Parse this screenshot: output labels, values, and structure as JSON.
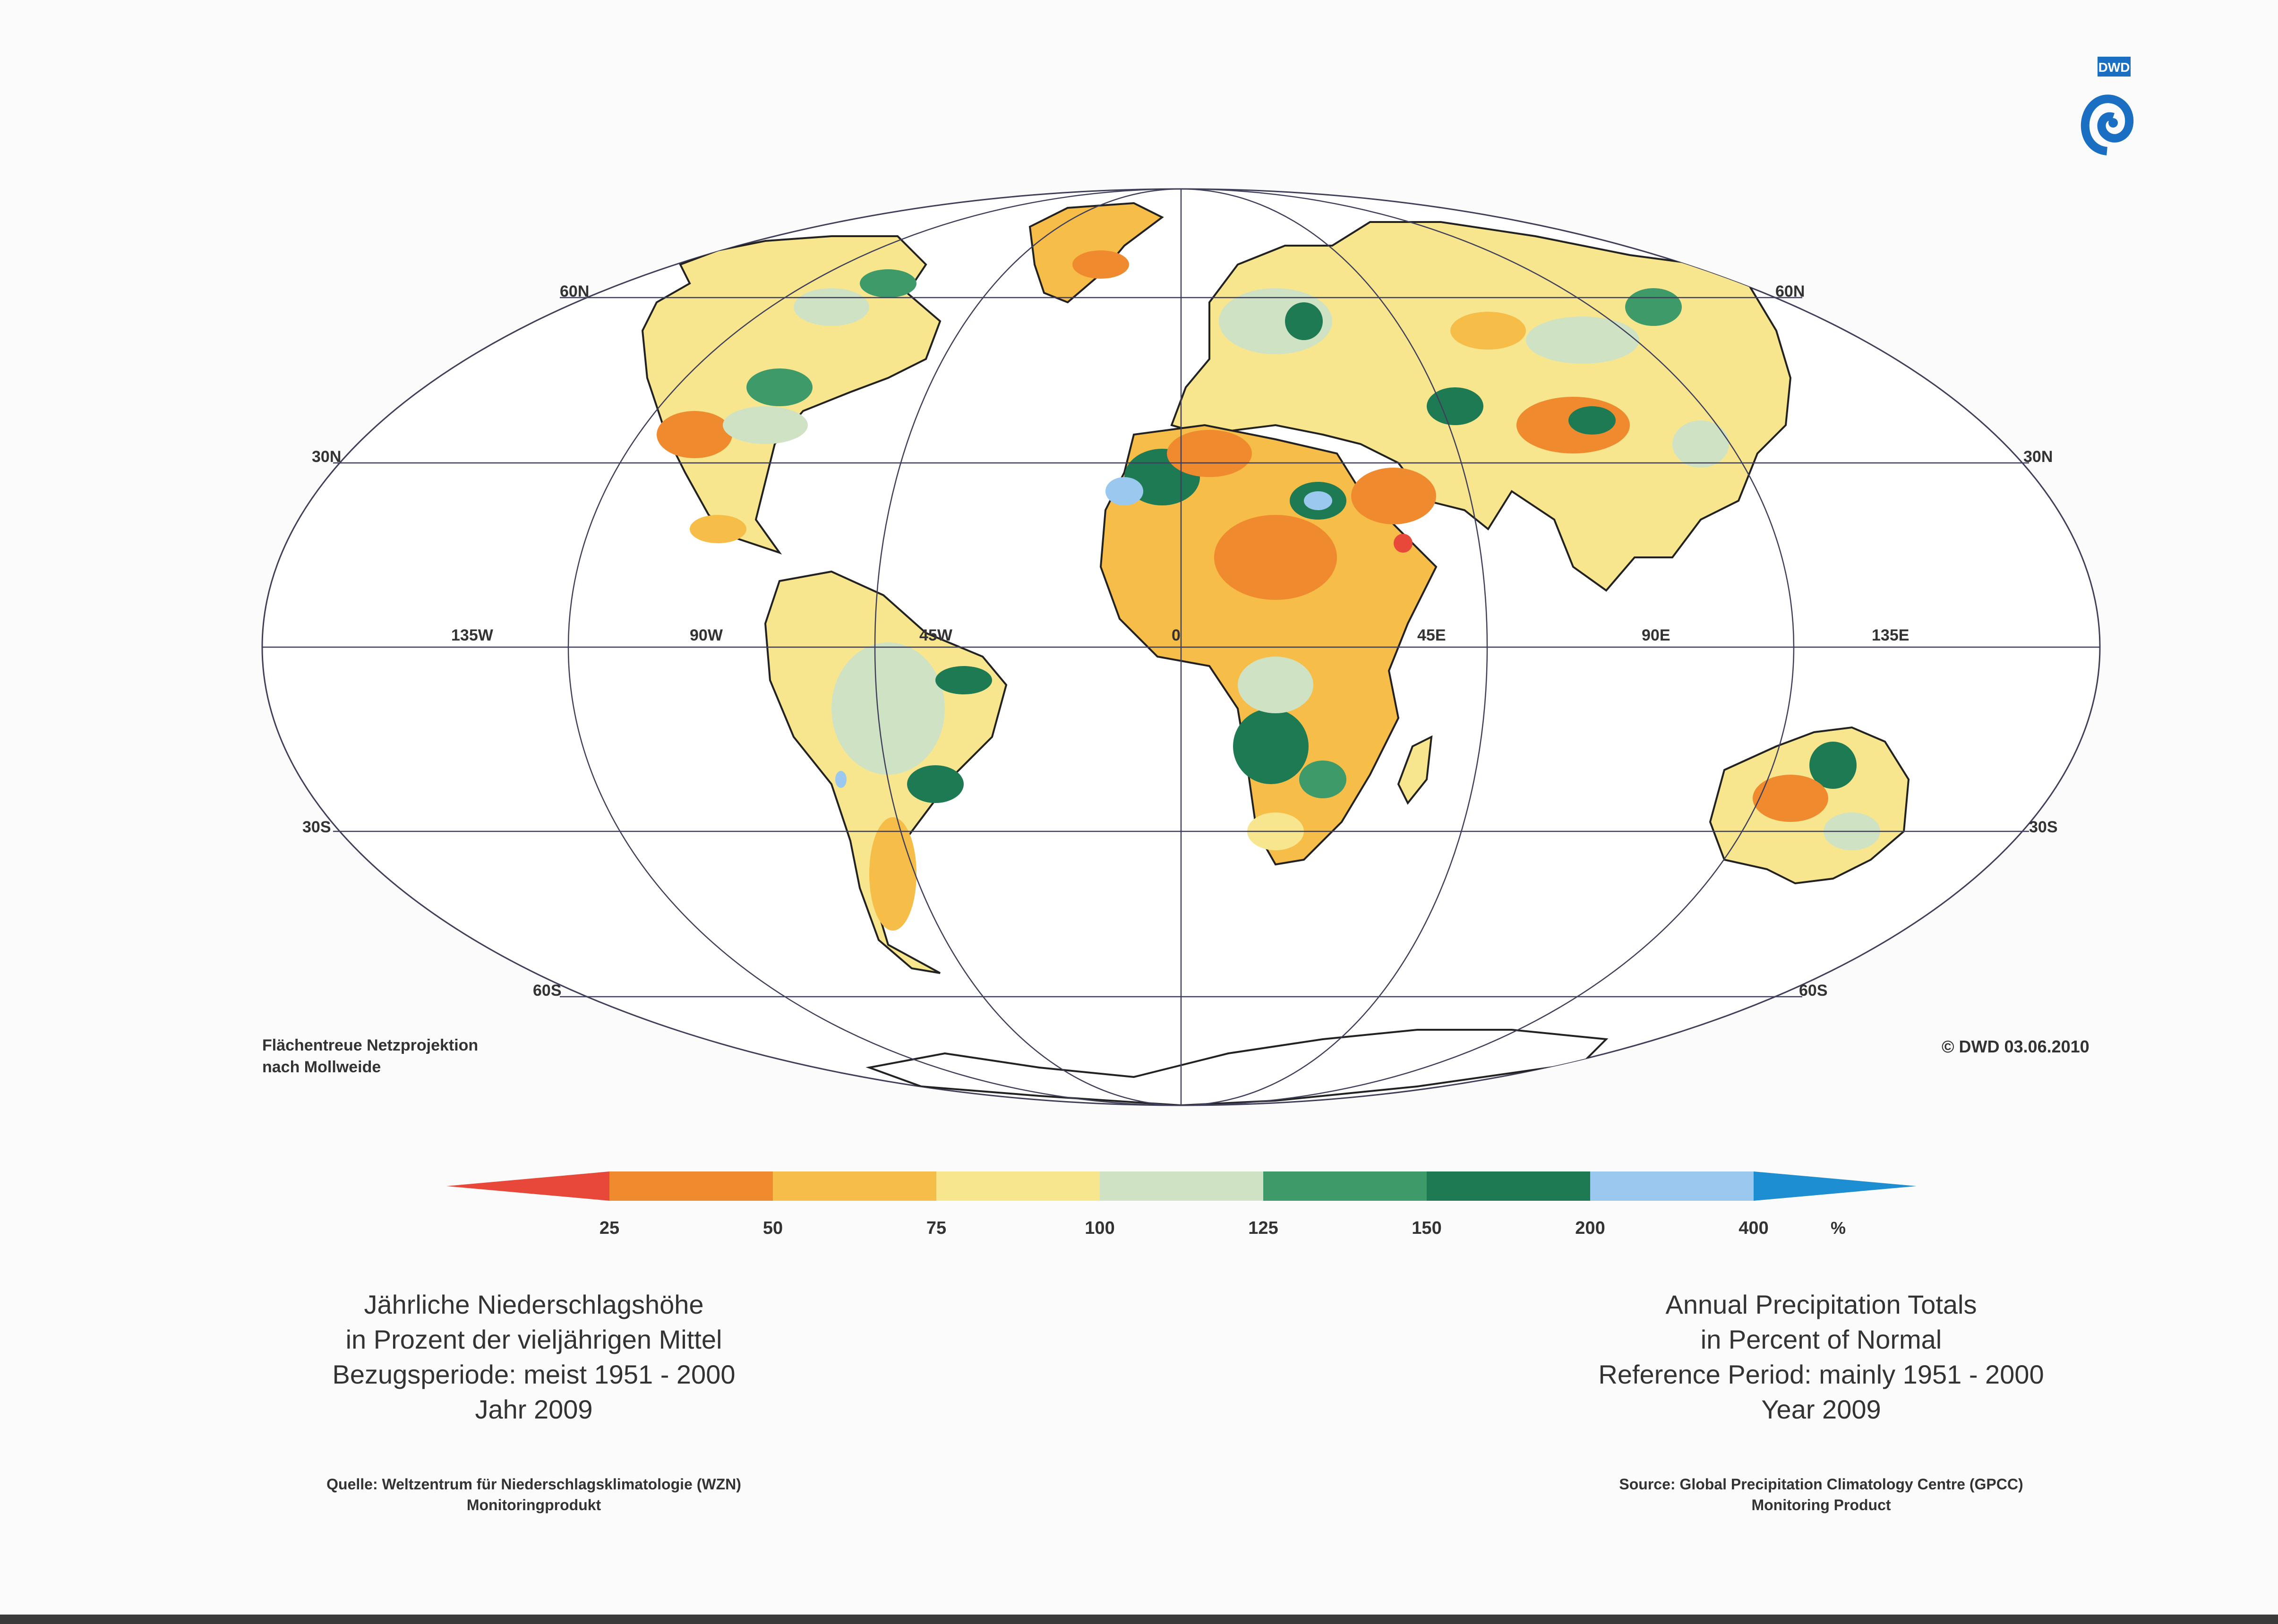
{
  "logo": {
    "text": "DWD",
    "icon": "dwd-swirl-icon",
    "color": "#1a6fc2"
  },
  "map": {
    "projection_note": [
      "Flächentreue Netzprojektion",
      "nach Mollweide"
    ],
    "copyright": "© DWD 03.06.2010",
    "latitude_labels": {
      "60N": "60N",
      "30N": "30N",
      "30S": "30S",
      "60S": "60S"
    },
    "longitude_labels": {
      "w135": "135W",
      "w90": "90W",
      "w45": "45W",
      "zero": "0",
      "e45": "45E",
      "e90": "90E",
      "e135": "135E"
    }
  },
  "legend": {
    "unit": "%",
    "ticks": [
      "25",
      "50",
      "75",
      "100",
      "125",
      "150",
      "200",
      "400"
    ],
    "classes": [
      {
        "range": "<25",
        "color": "#e8483a"
      },
      {
        "range": "25-50",
        "color": "#f08a2e"
      },
      {
        "range": "50-75",
        "color": "#f6bd48"
      },
      {
        "range": "75-100",
        "color": "#f7e68e"
      },
      {
        "range": "100-125",
        "color": "#cfe3c4"
      },
      {
        "range": "125-150",
        "color": "#3f9a6a"
      },
      {
        "range": "150-200",
        "color": "#1e7a52"
      },
      {
        "range": "200-400",
        "color": "#9ac8ee"
      },
      {
        "range": ">400",
        "color": "#1d8ed1"
      }
    ]
  },
  "title_de": {
    "line1": "Jährliche Niederschlagshöhe",
    "line2": "in Prozent der vieljährigen Mittel",
    "line3": "Bezugsperiode: meist 1951 - 2000",
    "line4": "Jahr 2009"
  },
  "title_en": {
    "line1": "Annual Precipitation Totals",
    "line2": "in Percent of Normal",
    "line3": "Reference Period: mainly 1951 - 2000",
    "line4": "Year 2009"
  },
  "source_de": {
    "line1": "Quelle: Weltzentrum für Niederschlagsklimatologie (WZN)",
    "line2": "Monitoringprodukt"
  },
  "source_en": {
    "line1": "Source: Global Precipitation Climatology Centre (GPCC)",
    "line2": "Monitoring Product"
  }
}
